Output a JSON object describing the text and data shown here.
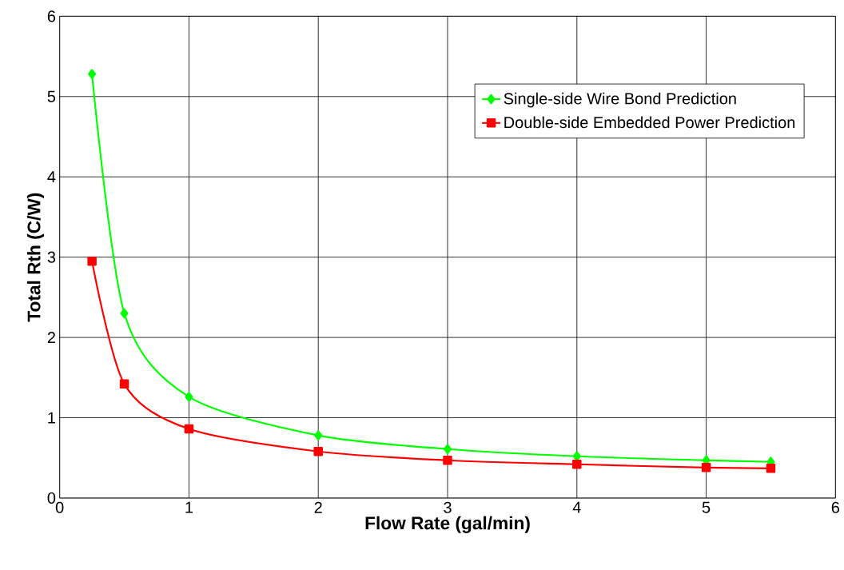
{
  "chart_data": {
    "type": "line",
    "xlabel": "Flow Rate (gal/min)",
    "ylabel": "Total Rth (C/W)",
    "x": [
      0.25,
      0.5,
      1,
      2,
      3,
      4,
      5,
      5.5
    ],
    "series": [
      {
        "name": "Single-side Wire Bond Prediction",
        "color": "#00ff00",
        "marker": "diamond",
        "values": [
          5.28,
          2.3,
          1.26,
          0.78,
          0.61,
          0.52,
          0.47,
          0.45
        ]
      },
      {
        "name": "Double-side Embedded Power Prediction",
        "color": "#ff0000",
        "marker": "square",
        "values": [
          2.95,
          1.42,
          0.86,
          0.58,
          0.47,
          0.42,
          0.38,
          0.37
        ]
      }
    ],
    "xlim": [
      0,
      6
    ],
    "ylim": [
      0,
      6
    ],
    "xticks": [
      0,
      1,
      2,
      3,
      4,
      5,
      6
    ],
    "yticks": [
      0,
      1,
      2,
      3,
      4,
      5,
      6
    ],
    "grid": true,
    "legend": "top right",
    "line_style": "solid"
  }
}
